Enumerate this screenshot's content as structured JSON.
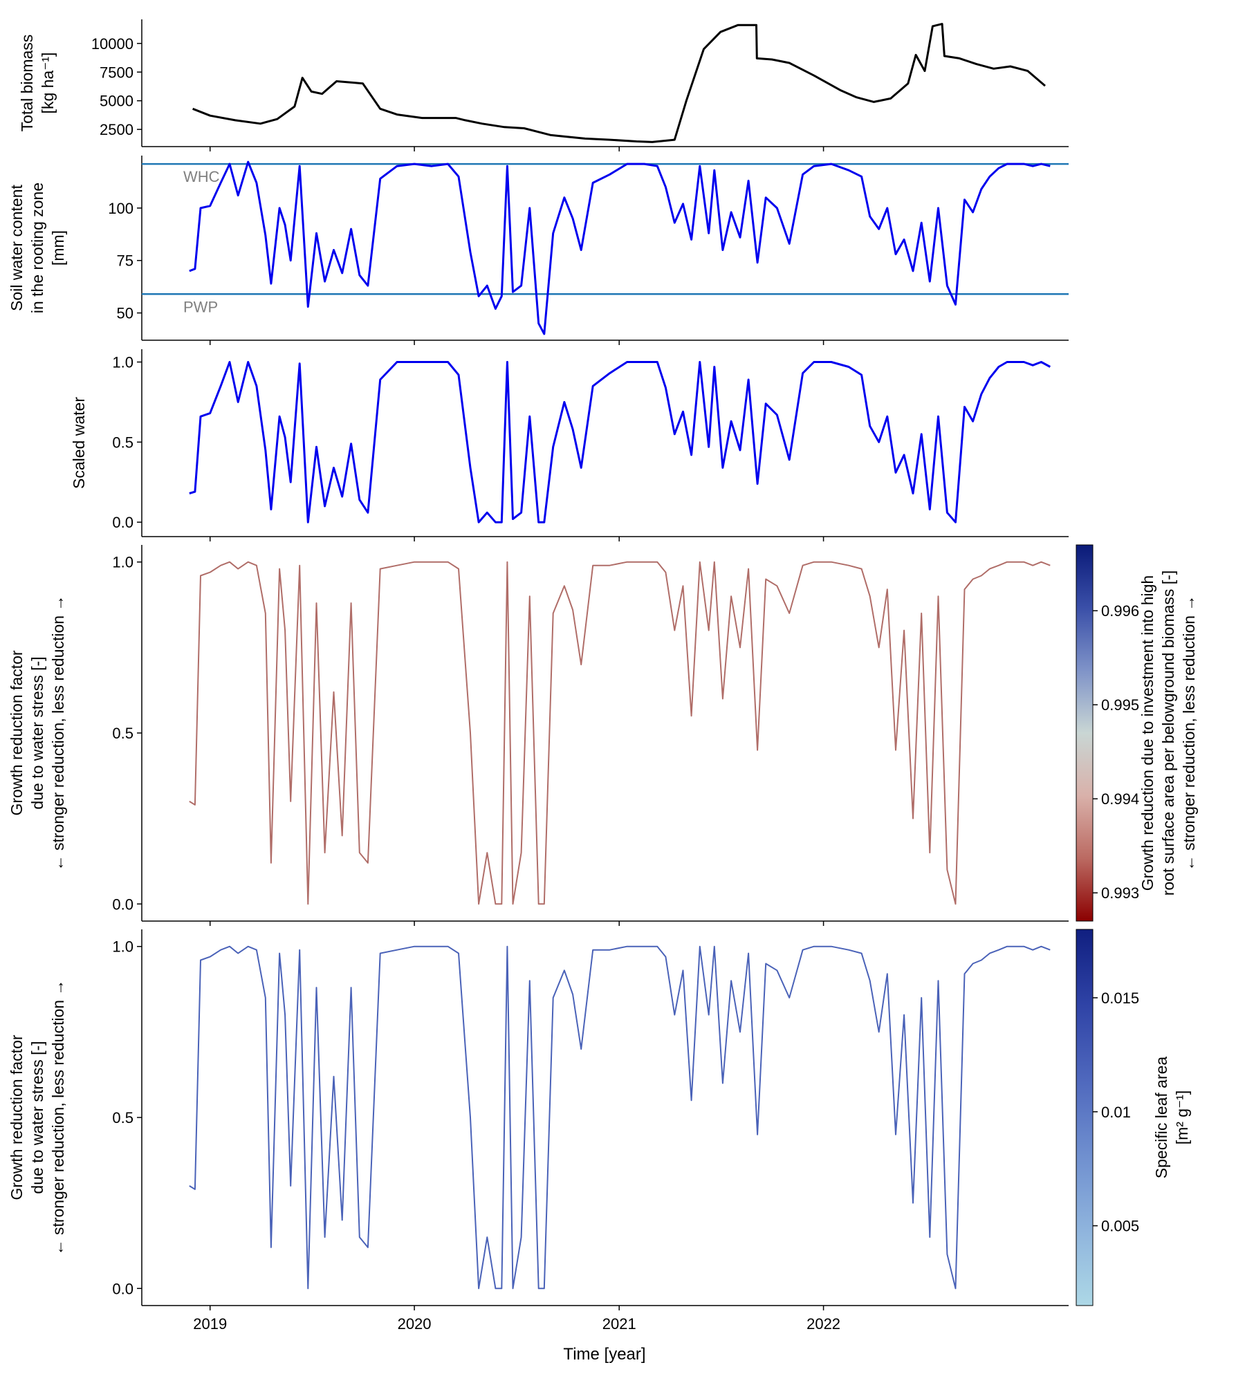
{
  "figure": {
    "xlabel": "Time [year]",
    "x_ticks": [
      "2019",
      "2020",
      "2021",
      "2022"
    ],
    "x_range": [
      "2018-09-01",
      "2023-03-15"
    ]
  },
  "chart_data": [
    {
      "type": "line",
      "ylabel": [
        "Total biomass",
        "[kg ha⁻¹]"
      ],
      "yticks": [
        2500,
        5000,
        7500,
        10000
      ],
      "ylim": [
        1000,
        12100
      ],
      "color": "#000000",
      "x": [
        "2018-12-01",
        "2019-01-01",
        "2019-02-15",
        "2019-04-01",
        "2019-05-01",
        "2019-06-01",
        "2019-06-15",
        "2019-07-01",
        "2019-07-20",
        "2019-08-15",
        "2019-09-10",
        "2019-10-01",
        "2019-11-01",
        "2019-12-01",
        "2020-01-15",
        "2020-03-15",
        "2020-04-01",
        "2020-05-01",
        "2020-06-10",
        "2020-07-15",
        "2020-09-01",
        "2020-10-01",
        "2020-11-01",
        "2020-12-15",
        "2021-02-01",
        "2021-03-01",
        "2021-04-10",
        "2021-05-01",
        "2021-06-01",
        "2021-07-01",
        "2021-08-01",
        "2021-09-03",
        "2021-09-04",
        "2021-10-01",
        "2021-11-01",
        "2021-12-15",
        "2022-02-01",
        "2022-03-01",
        "2022-04-01",
        "2022-05-01",
        "2022-06-01",
        "2022-06-15",
        "2022-07-01",
        "2022-07-15",
        "2022-08-01",
        "2022-08-05",
        "2022-09-01",
        "2022-10-01",
        "2022-11-01",
        "2022-12-01",
        "2023-01-01",
        "2023-02-01"
      ],
      "y": [
        4300,
        3700,
        3300,
        3000,
        3400,
        4500,
        7000,
        5800,
        5600,
        6700,
        6600,
        6500,
        4300,
        3800,
        3500,
        3500,
        3300,
        3000,
        2700,
        2600,
        2000,
        1850,
        1700,
        1600,
        1450,
        1400,
        1600,
        5000,
        9500,
        11000,
        11600,
        11600,
        8700,
        8600,
        8300,
        7200,
        5900,
        5300,
        4900,
        5200,
        6500,
        9000,
        7600,
        11500,
        11700,
        8900,
        8700,
        8200,
        7800,
        8000,
        7600,
        6300
      ]
    },
    {
      "type": "line",
      "ylabel": [
        "Soil water content",
        "in the rooting zone",
        "[mm]"
      ],
      "yticks": [
        50,
        75,
        100
      ],
      "ylim": [
        37,
        125
      ],
      "color": "#0000ee",
      "reference_lines": [
        {
          "label": "WHC",
          "y": 121,
          "color": "#1f77b4"
        },
        {
          "label": "PWP",
          "y": 59,
          "color": "#1f77b4"
        }
      ],
      "x": [
        "2018-11-25",
        "2018-12-05",
        "2018-12-15",
        "2019-01-01",
        "2019-01-20",
        "2019-02-05",
        "2019-02-20",
        "2019-03-10",
        "2019-03-25",
        "2019-04-10",
        "2019-04-20",
        "2019-05-05",
        "2019-05-15",
        "2019-05-25",
        "2019-06-10",
        "2019-06-25",
        "2019-07-10",
        "2019-07-25",
        "2019-08-10",
        "2019-08-25",
        "2019-09-10",
        "2019-09-25",
        "2019-10-10",
        "2019-11-01",
        "2019-12-01",
        "2020-01-01",
        "2020-02-01",
        "2020-03-01",
        "2020-03-20",
        "2020-04-10",
        "2020-04-25",
        "2020-05-10",
        "2020-05-25",
        "2020-06-05",
        "2020-06-15",
        "2020-06-25",
        "2020-07-10",
        "2020-07-25",
        "2020-08-10",
        "2020-08-20",
        "2020-09-05",
        "2020-09-25",
        "2020-10-10",
        "2020-10-25",
        "2020-11-15",
        "2020-12-15",
        "2021-01-15",
        "2021-02-15",
        "2021-03-10",
        "2021-03-25",
        "2021-04-10",
        "2021-04-25",
        "2021-05-10",
        "2021-05-25",
        "2021-06-10",
        "2021-06-20",
        "2021-07-05",
        "2021-07-20",
        "2021-08-05",
        "2021-08-20",
        "2021-09-05",
        "2021-09-20",
        "2021-10-10",
        "2021-11-01",
        "2021-11-25",
        "2021-12-15",
        "2022-01-15",
        "2022-02-15",
        "2022-03-10",
        "2022-03-25",
        "2022-04-10",
        "2022-04-25",
        "2022-05-10",
        "2022-05-25",
        "2022-06-10",
        "2022-06-25",
        "2022-07-10",
        "2022-07-25",
        "2022-08-10",
        "2022-08-25",
        "2022-09-10",
        "2022-09-25",
        "2022-10-10",
        "2022-10-25",
        "2022-11-10",
        "2022-11-25",
        "2022-12-10",
        "2022-12-25",
        "2023-01-10",
        "2023-01-25",
        "2023-02-10"
      ],
      "y": [
        70,
        71,
        100,
        101,
        112,
        121,
        106,
        122,
        112,
        87,
        64,
        100,
        92,
        75,
        120,
        53,
        88,
        65,
        80,
        69,
        90,
        68,
        63,
        114,
        120,
        121,
        120,
        121,
        115,
        79,
        58,
        63,
        52,
        58,
        120,
        60,
        63,
        100,
        45,
        40,
        88,
        105,
        95,
        80,
        112,
        116,
        121,
        121,
        120,
        110,
        93,
        102,
        85,
        120,
        88,
        118,
        80,
        98,
        86,
        113,
        74,
        105,
        100,
        83,
        116,
        120,
        121,
        118,
        115,
        96,
        90,
        100,
        78,
        85,
        70,
        93,
        65,
        100,
        63,
        54,
        104,
        98,
        109,
        115,
        119,
        121,
        121,
        121,
        120,
        121,
        120
      ]
    },
    {
      "type": "line",
      "ylabel": [
        "Scaled water"
      ],
      "yticks": [
        0.0,
        0.5,
        1.0
      ],
      "yticklabels": [
        "0.0",
        "0.5",
        "1.0"
      ],
      "ylim": [
        -0.09,
        1.08
      ],
      "color": "#0000ee",
      "x": [
        "2018-11-25",
        "2018-12-05",
        "2018-12-15",
        "2019-01-01",
        "2019-01-20",
        "2019-02-05",
        "2019-02-20",
        "2019-03-10",
        "2019-03-25",
        "2019-04-10",
        "2019-04-20",
        "2019-05-05",
        "2019-05-15",
        "2019-05-25",
        "2019-06-10",
        "2019-06-25",
        "2019-07-10",
        "2019-07-25",
        "2019-08-10",
        "2019-08-25",
        "2019-09-10",
        "2019-09-25",
        "2019-10-10",
        "2019-11-01",
        "2019-12-01",
        "2020-01-01",
        "2020-02-01",
        "2020-03-01",
        "2020-03-20",
        "2020-04-10",
        "2020-04-25",
        "2020-05-10",
        "2020-05-25",
        "2020-06-05",
        "2020-06-15",
        "2020-06-25",
        "2020-07-10",
        "2020-07-25",
        "2020-08-10",
        "2020-08-20",
        "2020-09-05",
        "2020-09-25",
        "2020-10-10",
        "2020-10-25",
        "2020-11-15",
        "2020-12-15",
        "2021-01-15",
        "2021-02-15",
        "2021-03-10",
        "2021-03-25",
        "2021-04-10",
        "2021-04-25",
        "2021-05-10",
        "2021-05-25",
        "2021-06-10",
        "2021-06-20",
        "2021-07-05",
        "2021-07-20",
        "2021-08-05",
        "2021-08-20",
        "2021-09-05",
        "2021-09-20",
        "2021-10-10",
        "2021-11-01",
        "2021-11-25",
        "2021-12-15",
        "2022-01-15",
        "2022-02-15",
        "2022-03-10",
        "2022-03-25",
        "2022-04-10",
        "2022-04-25",
        "2022-05-10",
        "2022-05-25",
        "2022-06-10",
        "2022-06-25",
        "2022-07-10",
        "2022-07-25",
        "2022-08-10",
        "2022-08-25",
        "2022-09-10",
        "2022-09-25",
        "2022-10-10",
        "2022-10-25",
        "2022-11-10",
        "2022-11-25",
        "2022-12-10",
        "2022-12-25",
        "2023-01-10",
        "2023-01-25",
        "2023-02-10"
      ],
      "y": [
        0.18,
        0.19,
        0.66,
        0.68,
        0.85,
        1.0,
        0.75,
        1.0,
        0.85,
        0.45,
        0.08,
        0.66,
        0.53,
        0.25,
        0.99,
        0.0,
        0.47,
        0.1,
        0.34,
        0.16,
        0.49,
        0.14,
        0.06,
        0.89,
        1.0,
        1.0,
        1.0,
        1.0,
        0.92,
        0.34,
        0.0,
        0.06,
        0.0,
        0.0,
        1.0,
        0.02,
        0.06,
        0.66,
        0.0,
        0.0,
        0.47,
        0.75,
        0.58,
        0.34,
        0.85,
        0.93,
        1.0,
        1.0,
        1.0,
        0.84,
        0.55,
        0.69,
        0.42,
        1.0,
        0.47,
        0.97,
        0.34,
        0.63,
        0.45,
        0.89,
        0.24,
        0.74,
        0.67,
        0.39,
        0.93,
        1.0,
        1.0,
        0.97,
        0.92,
        0.6,
        0.5,
        0.66,
        0.31,
        0.42,
        0.18,
        0.55,
        0.08,
        0.66,
        0.06,
        0.0,
        0.72,
        0.63,
        0.8,
        0.9,
        0.97,
        1.0,
        1.0,
        1.0,
        0.98,
        1.0,
        0.97
      ]
    },
    {
      "type": "line",
      "ylabel": [
        "Growth reduction factor",
        "due to water stress [-]",
        "← stronger reduction, less reduction →"
      ],
      "yticks": [
        0.0,
        0.5,
        1.0
      ],
      "yticklabels": [
        "0.0",
        "0.5",
        "1.0"
      ],
      "ylim": [
        -0.05,
        1.05
      ],
      "color": "#b06d68",
      "colorbar": {
        "label": [
          "Growth reduction due to investment into high",
          "root surface area per belowground biomass [-]",
          "← stronger reduction, less reduction →"
        ],
        "ticks": [
          0.993,
          0.994,
          0.995,
          0.996
        ],
        "range": [
          0.9927,
          0.9967
        ],
        "colors": [
          "#8b0000",
          "#bb6a62",
          "#d9b1aa",
          "#c9d6d4",
          "#7f93c8",
          "#3a4fa8",
          "#0a1a78"
        ]
      },
      "x": [
        "2018-11-25",
        "2018-12-05",
        "2018-12-15",
        "2019-01-01",
        "2019-01-20",
        "2019-02-05",
        "2019-02-20",
        "2019-03-10",
        "2019-03-25",
        "2019-04-10",
        "2019-04-20",
        "2019-05-05",
        "2019-05-15",
        "2019-05-25",
        "2019-06-10",
        "2019-06-25",
        "2019-07-10",
        "2019-07-25",
        "2019-08-10",
        "2019-08-25",
        "2019-09-10",
        "2019-09-25",
        "2019-10-10",
        "2019-11-01",
        "2019-12-01",
        "2020-01-01",
        "2020-02-01",
        "2020-03-01",
        "2020-03-20",
        "2020-04-10",
        "2020-04-25",
        "2020-05-10",
        "2020-05-25",
        "2020-06-05",
        "2020-06-15",
        "2020-06-25",
        "2020-07-10",
        "2020-07-25",
        "2020-08-10",
        "2020-08-20",
        "2020-09-05",
        "2020-09-25",
        "2020-10-10",
        "2020-10-25",
        "2020-11-15",
        "2020-12-15",
        "2021-01-15",
        "2021-02-15",
        "2021-03-10",
        "2021-03-25",
        "2021-04-10",
        "2021-04-25",
        "2021-05-10",
        "2021-05-25",
        "2021-06-10",
        "2021-06-20",
        "2021-07-05",
        "2021-07-20",
        "2021-08-05",
        "2021-08-20",
        "2021-09-05",
        "2021-09-20",
        "2021-10-10",
        "2021-11-01",
        "2021-11-25",
        "2021-12-15",
        "2022-01-15",
        "2022-02-15",
        "2022-03-10",
        "2022-03-25",
        "2022-04-10",
        "2022-04-25",
        "2022-05-10",
        "2022-05-25",
        "2022-06-10",
        "2022-06-25",
        "2022-07-10",
        "2022-07-25",
        "2022-08-10",
        "2022-08-25",
        "2022-09-10",
        "2022-09-25",
        "2022-10-10",
        "2022-10-25",
        "2022-11-10",
        "2022-11-25",
        "2022-12-10",
        "2022-12-25",
        "2023-01-10",
        "2023-01-25",
        "2023-02-10"
      ],
      "y": [
        0.3,
        0.29,
        0.96,
        0.97,
        0.99,
        1.0,
        0.98,
        1.0,
        0.99,
        0.85,
        0.12,
        0.98,
        0.8,
        0.3,
        0.99,
        0.0,
        0.88,
        0.15,
        0.62,
        0.2,
        0.88,
        0.15,
        0.12,
        0.98,
        0.99,
        1.0,
        1.0,
        1.0,
        0.98,
        0.5,
        0.0,
        0.15,
        0.0,
        0.0,
        1.0,
        0.0,
        0.15,
        0.9,
        0.0,
        0.0,
        0.85,
        0.93,
        0.86,
        0.7,
        0.99,
        0.99,
        1.0,
        1.0,
        1.0,
        0.97,
        0.8,
        0.93,
        0.55,
        1.0,
        0.8,
        1.0,
        0.6,
        0.9,
        0.75,
        0.98,
        0.45,
        0.95,
        0.93,
        0.85,
        0.99,
        1.0,
        1.0,
        0.99,
        0.98,
        0.9,
        0.75,
        0.92,
        0.45,
        0.8,
        0.25,
        0.85,
        0.15,
        0.9,
        0.1,
        0.0,
        0.92,
        0.95,
        0.96,
        0.98,
        0.99,
        1.0,
        1.0,
        1.0,
        0.99,
        1.0,
        0.99
      ]
    },
    {
      "type": "line",
      "ylabel": [
        "Growth reduction factor",
        "due to water stress [-]",
        "← stronger reduction, less reduction →"
      ],
      "yticks": [
        0.0,
        0.5,
        1.0
      ],
      "yticklabels": [
        "0.0",
        "0.5",
        "1.0"
      ],
      "ylim": [
        -0.05,
        1.05
      ],
      "color": "#4a62b8",
      "colorbar": {
        "label": [
          "Specific leaf area",
          "[m² g⁻¹]"
        ],
        "ticks": [
          0.005,
          0.01,
          0.015
        ],
        "range": [
          0.0015,
          0.018
        ],
        "colors": [
          "#add8e6",
          "#8fb4dd",
          "#6f8fcf",
          "#4f68bd",
          "#2f43a6",
          "#101f80"
        ]
      },
      "x": [
        "2018-11-25",
        "2018-12-05",
        "2018-12-15",
        "2019-01-01",
        "2019-01-20",
        "2019-02-05",
        "2019-02-20",
        "2019-03-10",
        "2019-03-25",
        "2019-04-10",
        "2019-04-20",
        "2019-05-05",
        "2019-05-15",
        "2019-05-25",
        "2019-06-10",
        "2019-06-25",
        "2019-07-10",
        "2019-07-25",
        "2019-08-10",
        "2019-08-25",
        "2019-09-10",
        "2019-09-25",
        "2019-10-10",
        "2019-11-01",
        "2019-12-01",
        "2020-01-01",
        "2020-02-01",
        "2020-03-01",
        "2020-03-20",
        "2020-04-10",
        "2020-04-25",
        "2020-05-10",
        "2020-05-25",
        "2020-06-05",
        "2020-06-15",
        "2020-06-25",
        "2020-07-10",
        "2020-07-25",
        "2020-08-10",
        "2020-08-20",
        "2020-09-05",
        "2020-09-25",
        "2020-10-10",
        "2020-10-25",
        "2020-11-15",
        "2020-12-15",
        "2021-01-15",
        "2021-02-15",
        "2021-03-10",
        "2021-03-25",
        "2021-04-10",
        "2021-04-25",
        "2021-05-10",
        "2021-05-25",
        "2021-06-10",
        "2021-06-20",
        "2021-07-05",
        "2021-07-20",
        "2021-08-05",
        "2021-08-20",
        "2021-09-05",
        "2021-09-20",
        "2021-10-10",
        "2021-11-01",
        "2021-11-25",
        "2021-12-15",
        "2022-01-15",
        "2022-02-15",
        "2022-03-10",
        "2022-03-25",
        "2022-04-10",
        "2022-04-25",
        "2022-05-10",
        "2022-05-25",
        "2022-06-10",
        "2022-06-25",
        "2022-07-10",
        "2022-07-25",
        "2022-08-10",
        "2022-08-25",
        "2022-09-10",
        "2022-09-25",
        "2022-10-10",
        "2022-10-25",
        "2022-11-10",
        "2022-11-25",
        "2022-12-10",
        "2022-12-25",
        "2023-01-10",
        "2023-01-25",
        "2023-02-10"
      ],
      "y": [
        0.3,
        0.29,
        0.96,
        0.97,
        0.99,
        1.0,
        0.98,
        1.0,
        0.99,
        0.85,
        0.12,
        0.98,
        0.8,
        0.3,
        0.99,
        0.0,
        0.88,
        0.15,
        0.62,
        0.2,
        0.88,
        0.15,
        0.12,
        0.98,
        0.99,
        1.0,
        1.0,
        1.0,
        0.98,
        0.5,
        0.0,
        0.15,
        0.0,
        0.0,
        1.0,
        0.0,
        0.15,
        0.9,
        0.0,
        0.0,
        0.85,
        0.93,
        0.86,
        0.7,
        0.99,
        0.99,
        1.0,
        1.0,
        1.0,
        0.97,
        0.8,
        0.93,
        0.55,
        1.0,
        0.8,
        1.0,
        0.6,
        0.9,
        0.75,
        0.98,
        0.45,
        0.95,
        0.93,
        0.85,
        0.99,
        1.0,
        1.0,
        0.99,
        0.98,
        0.9,
        0.75,
        0.92,
        0.45,
        0.8,
        0.25,
        0.85,
        0.15,
        0.9,
        0.1,
        0.0,
        0.92,
        0.95,
        0.96,
        0.98,
        0.99,
        1.0,
        1.0,
        1.0,
        0.99,
        1.0,
        0.99
      ]
    }
  ]
}
